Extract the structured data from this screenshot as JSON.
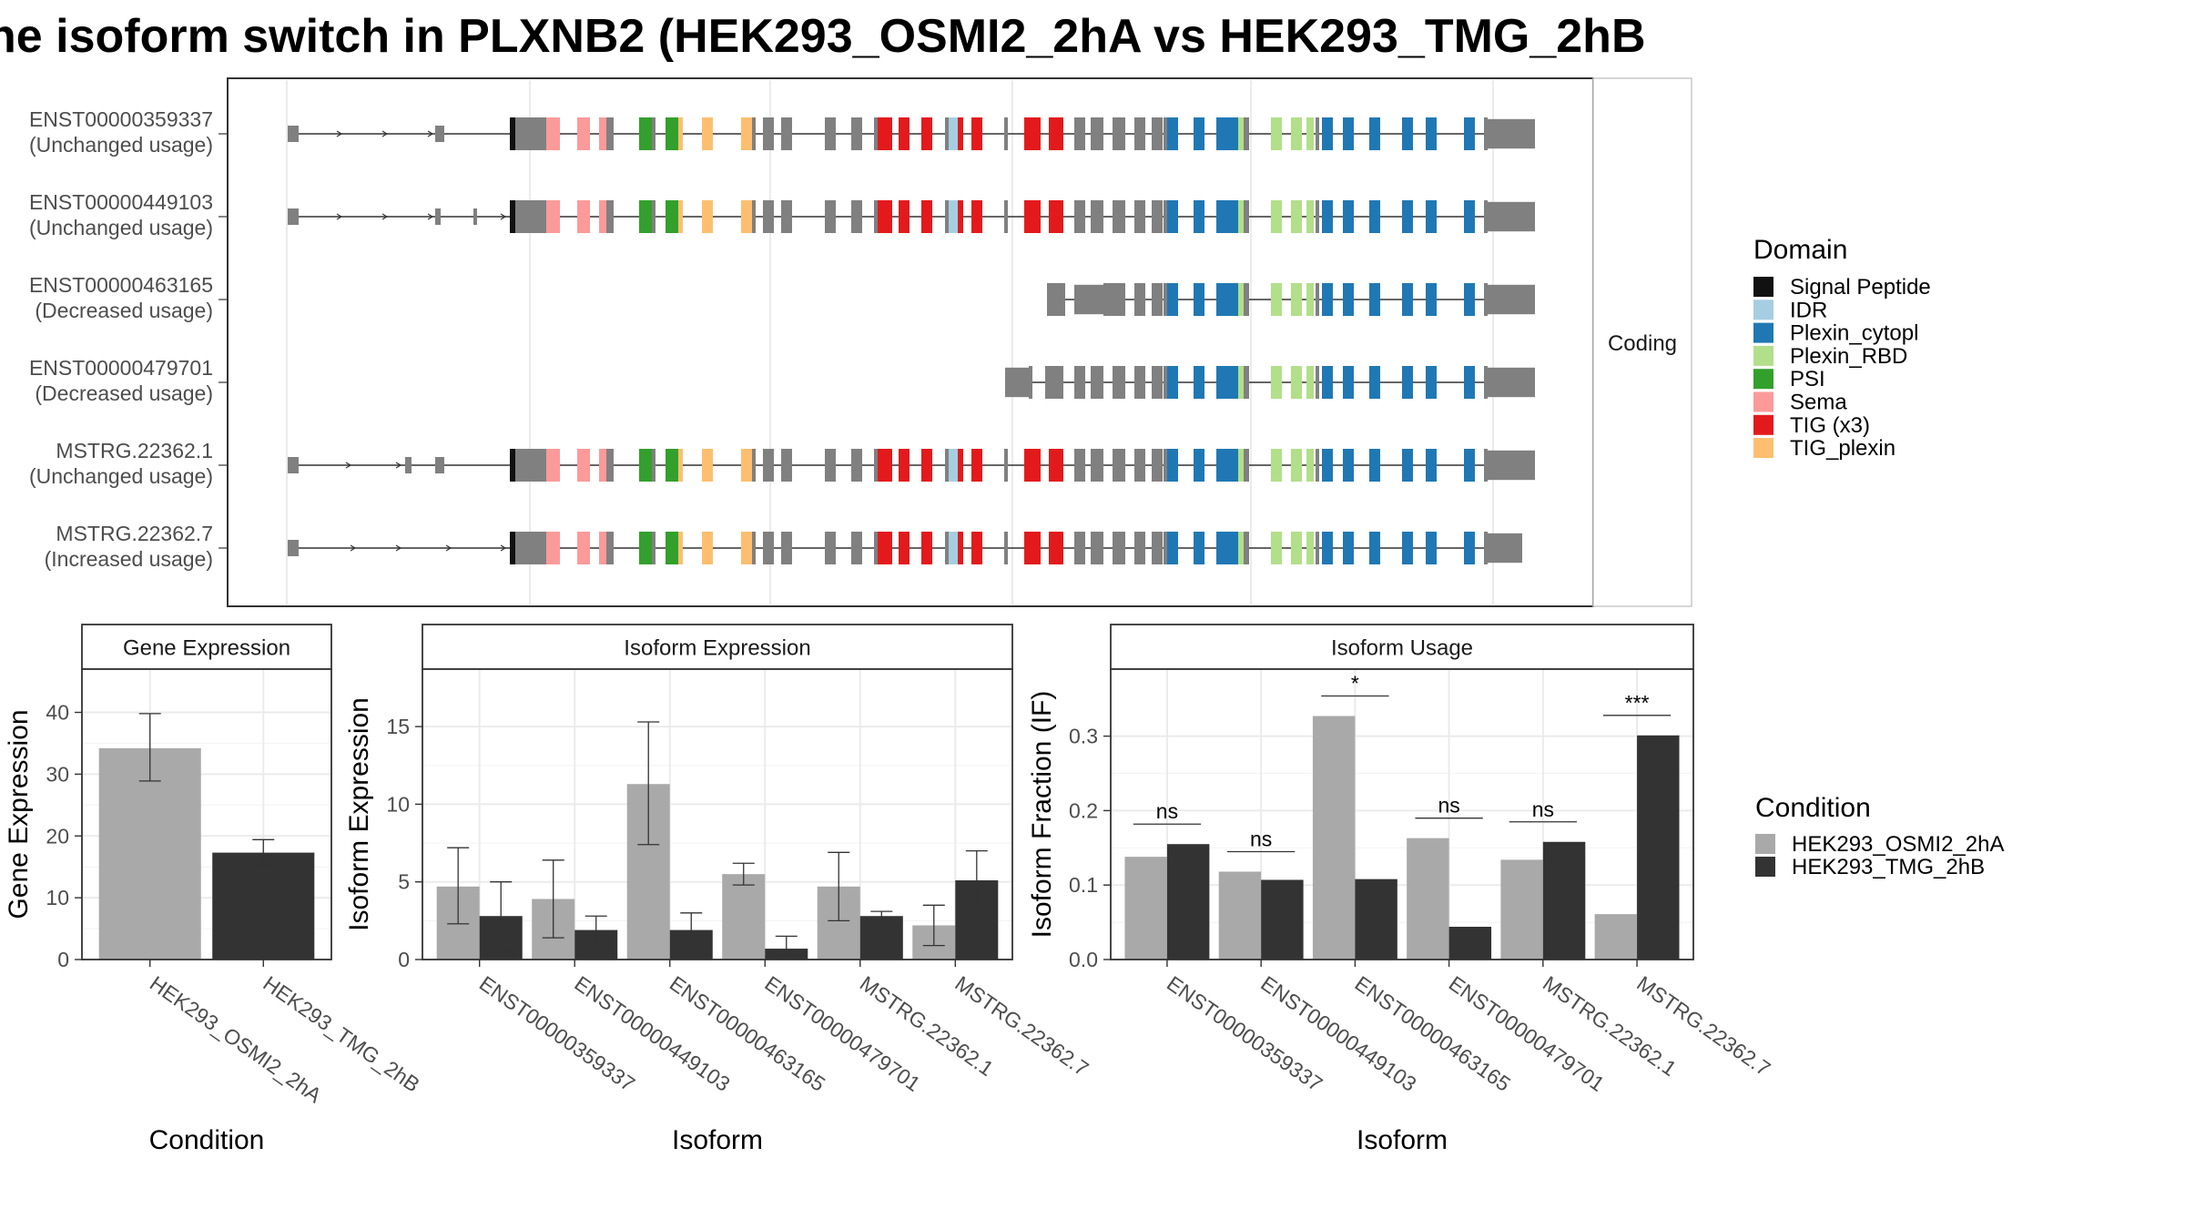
{
  "title": "he isoform switch in PLXNB2 (HEK293_OSMI2_2hA vs HEK293_TMG_2hB",
  "colors": {
    "condition_a": "#a9a9a9",
    "condition_b": "#333333",
    "exon_default": "#808080"
  },
  "transcript_panel": {
    "facet_label": "Coding",
    "transcripts": [
      {
        "id": "ENST00000359337",
        "status": "(Unchanged usage)"
      },
      {
        "id": "ENST00000449103",
        "status": "(Unchanged usage)"
      },
      {
        "id": "ENST00000463165",
        "status": "(Decreased usage)"
      },
      {
        "id": "ENST00000479701",
        "status": "(Decreased usage)"
      },
      {
        "id": "MSTRG.22362.1",
        "status": "(Unchanged usage)"
      },
      {
        "id": "MSTRG.22362.7",
        "status": "(Increased usage)"
      }
    ]
  },
  "domain_legend": {
    "title": "Domain",
    "items": [
      {
        "label": "Signal Peptide",
        "color": "#111111"
      },
      {
        "label": "IDR",
        "color": "#a6cee3"
      },
      {
        "label": "Plexin_cytopl",
        "color": "#1f78b4"
      },
      {
        "label": "Plexin_RBD",
        "color": "#b2df8a"
      },
      {
        "label": "PSI",
        "color": "#33a02c"
      },
      {
        "label": "Sema",
        "color": "#fb9a99"
      },
      {
        "label": "TIG (x3)",
        "color": "#e31a1c"
      },
      {
        "label": "TIG_plexin",
        "color": "#fdbf6f"
      }
    ]
  },
  "condition_legend": {
    "title": "Condition",
    "items": [
      {
        "label": "HEK293_OSMI2_2hA",
        "color": "#a9a9a9"
      },
      {
        "label": "HEK293_TMG_2hB",
        "color": "#333333"
      }
    ]
  },
  "chart_data": [
    {
      "type": "bar",
      "title": "Gene Expression",
      "xlabel": "Condition",
      "ylabel": "Gene Expression",
      "ylim": [
        0,
        47
      ],
      "yticks": [
        0,
        10,
        20,
        30,
        40
      ],
      "categories": [
        "HEK293_OSMI2_2hA",
        "HEK293_TMG_2hB"
      ],
      "values": [
        34.2,
        17.3
      ],
      "error_low": [
        28.9,
        15.3
      ],
      "error_high": [
        39.8,
        19.4
      ]
    },
    {
      "type": "bar",
      "title": "Isoform Expression",
      "xlabel": "Isoform",
      "ylabel": "Isoform Expression",
      "ylim": [
        0,
        18.7
      ],
      "yticks": [
        0,
        5,
        10,
        15
      ],
      "categories": [
        "ENST00000359337",
        "ENST00000449103",
        "ENST00000463165",
        "ENST00000479701",
        "MSTRG.22362.1",
        "MSTRG.22362.7"
      ],
      "series": [
        {
          "name": "HEK293_OSMI2_2hA",
          "values": [
            4.7,
            3.9,
            11.3,
            5.5,
            4.7,
            2.2
          ],
          "error_low": [
            2.3,
            1.4,
            7.4,
            4.8,
            2.5,
            0.9
          ],
          "error_high": [
            7.2,
            6.4,
            15.3,
            6.2,
            6.9,
            3.5
          ]
        },
        {
          "name": "HEK293_TMG_2hB",
          "values": [
            2.8,
            1.9,
            1.9,
            0.7,
            2.8,
            5.1
          ],
          "error_low": [
            0.5,
            1.1,
            0.8,
            0.1,
            2.5,
            3.2
          ],
          "error_high": [
            5.0,
            2.8,
            3.0,
            1.5,
            3.1,
            7.0
          ]
        }
      ]
    },
    {
      "type": "bar",
      "title": "Isoform Usage",
      "xlabel": "Isoform",
      "ylabel": "Isoform Fraction (IF)",
      "ylim": [
        0,
        0.39
      ],
      "yticks": [
        0.0,
        0.1,
        0.2,
        0.3
      ],
      "ytick_labels": [
        "0.0",
        "0.1",
        "0.2",
        "0.3"
      ],
      "categories": [
        "ENST00000359337",
        "ENST00000449103",
        "ENST00000463165",
        "ENST00000479701",
        "MSTRG.22362.1",
        "MSTRG.22362.7"
      ],
      "series": [
        {
          "name": "HEK293_OSMI2_2hA",
          "values": [
            0.138,
            0.118,
            0.327,
            0.163,
            0.134,
            0.061
          ]
        },
        {
          "name": "HEK293_TMG_2hB",
          "values": [
            0.155,
            0.107,
            0.108,
            0.044,
            0.158,
            0.301
          ]
        }
      ],
      "significance": [
        "ns",
        "ns",
        "*",
        "ns",
        "ns",
        "***"
      ]
    }
  ]
}
